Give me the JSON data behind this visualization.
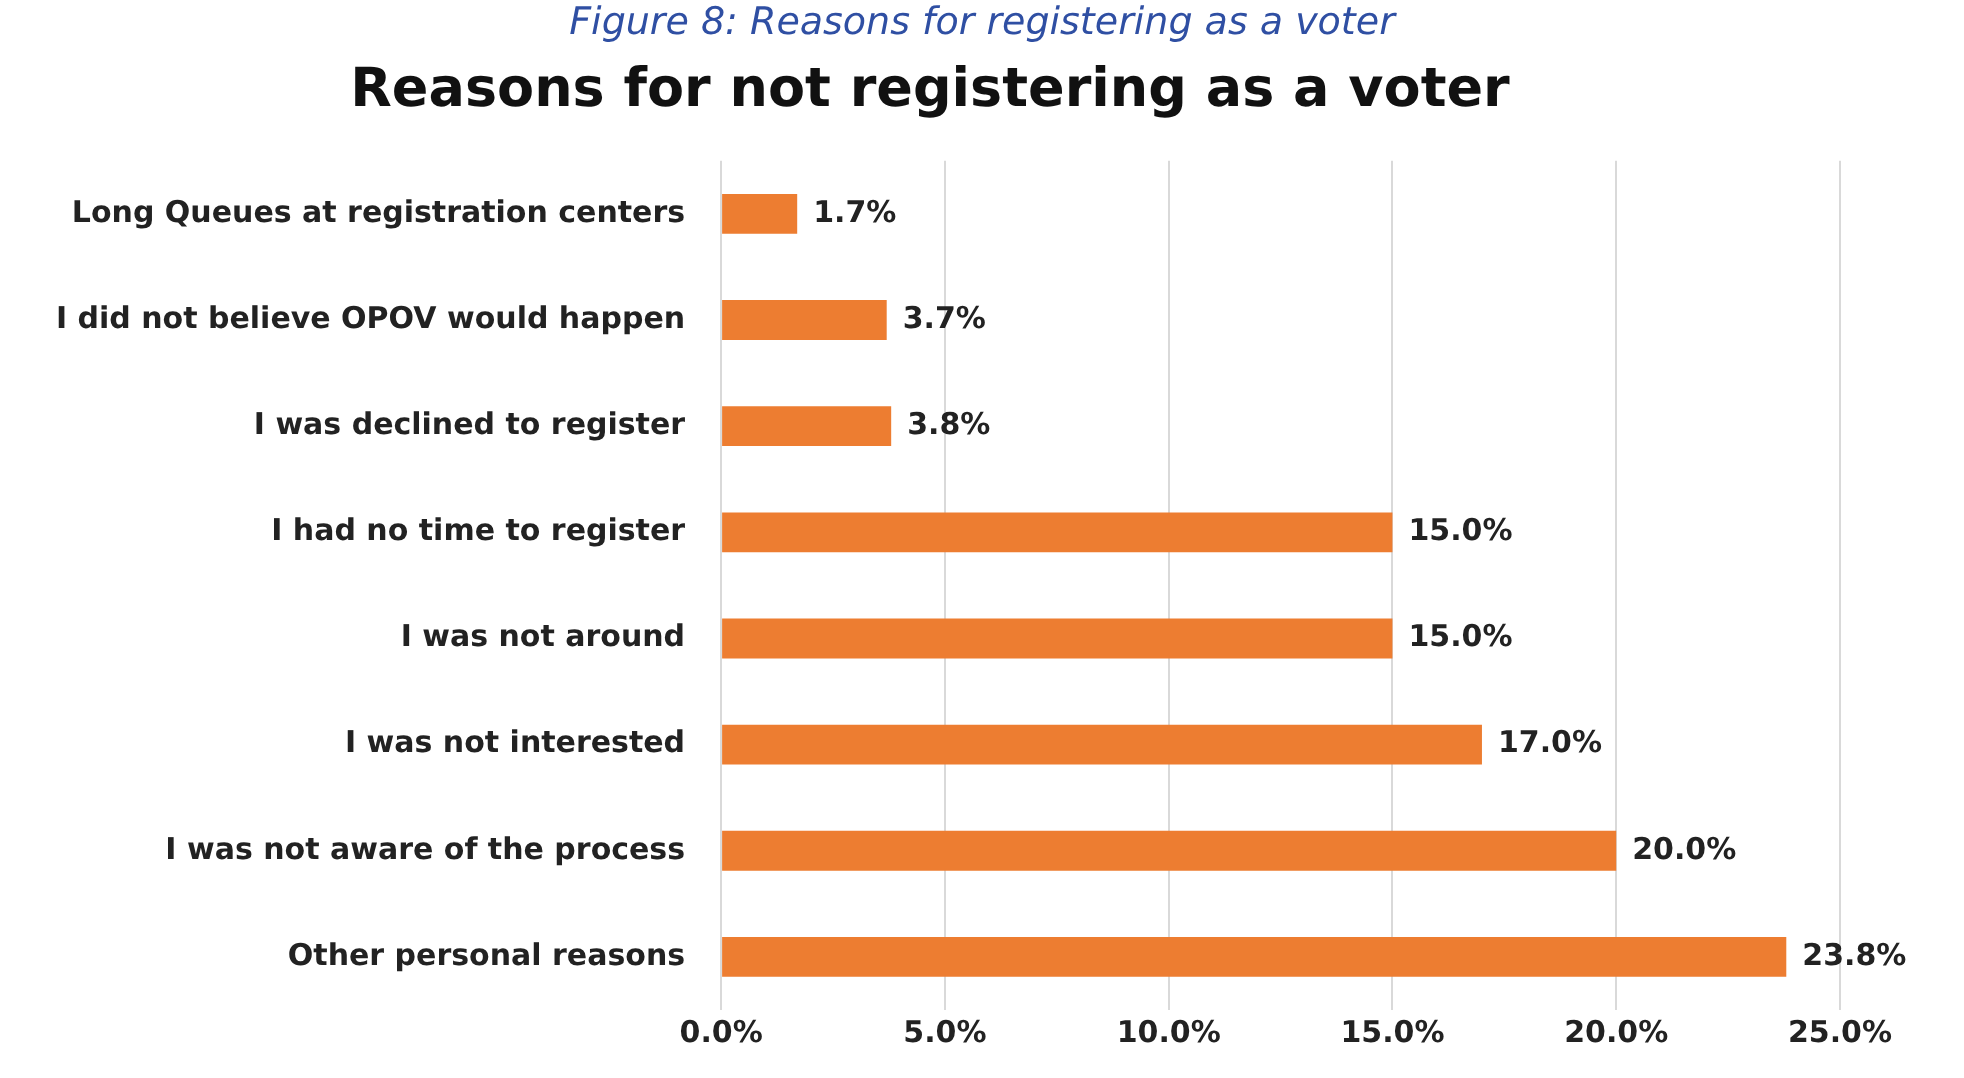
{
  "chart_data": {
    "type": "bar",
    "orientation": "horizontal",
    "title": "Reasons for not registering as a voter",
    "annotations": [
      "Figure 8: Reasons for registering as a voter"
    ],
    "categories": [
      "Long Queues at registration centers",
      "I did not believe OPOV would happen",
      "I was declined to register",
      "I had no time to register",
      "I was not around",
      "I was not interested",
      "I was not aware of the process",
      "Other personal reasons"
    ],
    "values": [
      1.7,
      3.7,
      3.8,
      15.0,
      15.0,
      17.0,
      20.0,
      23.8
    ],
    "value_labels": [
      "1.7%",
      "3.7%",
      "3.8%",
      "15.0%",
      "15.0%",
      "17.0%",
      "20.0%",
      "23.8%"
    ],
    "color": "#ed7d31",
    "xlim": [
      0,
      25
    ],
    "xticks": [
      {
        "value": 0,
        "label": "0.0%"
      },
      {
        "value": 5,
        "label": "5.0%"
      },
      {
        "value": 10,
        "label": "10.0%"
      },
      {
        "value": 15,
        "label": "15.0%"
      },
      {
        "value": 20,
        "label": "20.0%"
      },
      {
        "value": 25,
        "label": "25.0%"
      }
    ],
    "grid": "x"
  }
}
